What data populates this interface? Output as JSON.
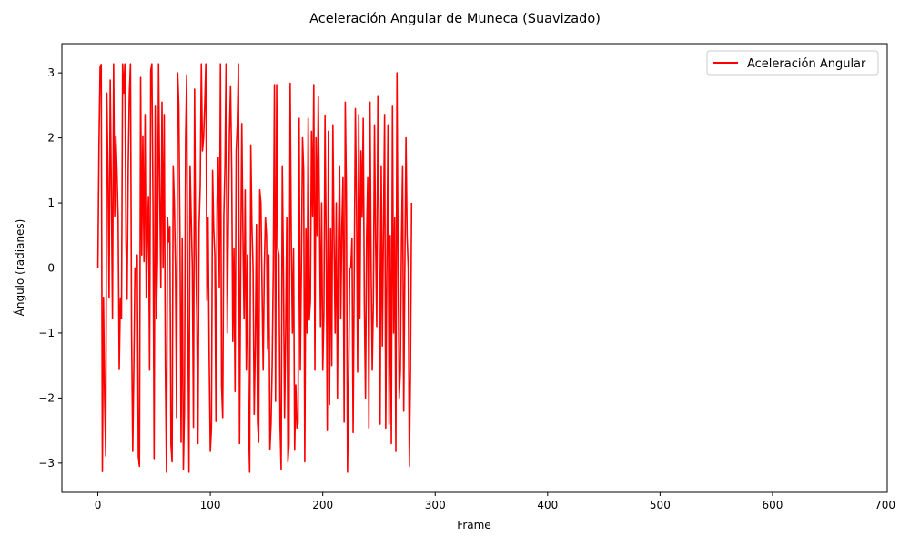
{
  "chart_data": {
    "type": "line",
    "title": "Aceleración Angular de Muneca (Suavizado)",
    "xlabel": "Frame",
    "ylabel": "Ángulo (radianes)",
    "xlim": [
      -32,
      702
    ],
    "ylim": [
      -3.45,
      3.45
    ],
    "x_ticks": [
      0,
      100,
      200,
      300,
      400,
      500,
      600,
      700
    ],
    "y_ticks": [
      -3,
      -2,
      -1,
      0,
      1,
      2,
      3
    ],
    "y_tick_labels": [
      "−3",
      "−2",
      "−1",
      "0",
      "1",
      "2",
      "3"
    ],
    "grid": false,
    "legend_position": "top-right",
    "colors": {
      "series": "#ff0000"
    },
    "series": [
      {
        "name": "Aceleración Angular",
        "x_start": 0,
        "x_step": 1,
        "values": [
          0.0,
          1.89,
          3.1,
          3.13,
          -3.13,
          -0.45,
          -2.0,
          -2.89,
          2.69,
          1.4,
          -0.46,
          2.89,
          1.2,
          -0.78,
          3.14,
          0.8,
          2.03,
          1.5,
          0.8,
          -1.56,
          -0.46,
          -0.78,
          3.14,
          2.69,
          3.14,
          0.4,
          -0.48,
          1.57,
          2.69,
          3.14,
          -1.0,
          -2.82,
          -1.5,
          0.0,
          0.0,
          0.2,
          -2.9,
          -3.05,
          2.93,
          0.2,
          2.03,
          0.1,
          2.36,
          -0.46,
          0.46,
          1.1,
          -1.57,
          3.04,
          3.14,
          1.0,
          -2.93,
          2.5,
          -0.78,
          0.1,
          3.14,
          1.2,
          -0.3,
          2.55,
          0.0,
          2.36,
          -1.5,
          -3.14,
          0.78,
          0.4,
          0.64,
          -2.72,
          -2.98,
          1.57,
          1.0,
          0.0,
          -2.3,
          3.0,
          2.5,
          0.5,
          -2.68,
          0.46,
          -3.1,
          -2.2,
          2.0,
          2.97,
          -0.78,
          -3.14,
          1.57,
          0.78,
          0.0,
          -2.45,
          2.75,
          0.3,
          -0.78,
          -2.7,
          0.64,
          1.25,
          3.14,
          1.8,
          2.0,
          2.5,
          3.14,
          -0.5,
          0.78,
          -1.4,
          -2.82,
          -2.46,
          1.5,
          0.6,
          0.2,
          -2.36,
          1.0,
          1.7,
          -0.3,
          3.14,
          -1.8,
          -2.3,
          0.8,
          1.57,
          3.14,
          -1.0,
          0.6,
          2.1,
          2.8,
          1.5,
          -1.13,
          0.3,
          -1.9,
          1.8,
          2.2,
          3.14,
          -2.7,
          0.0,
          2.22,
          0.5,
          -0.78,
          1.2,
          -1.57,
          0.2,
          -2.38,
          -3.14,
          1.89,
          0.64,
          0.0,
          -2.25,
          -1.2,
          0.67,
          -2.36,
          -2.68,
          1.2,
          1.0,
          -0.3,
          -1.57,
          0.0,
          0.78,
          0.5,
          -1.25,
          0.2,
          -2.79,
          -2.4,
          -1.5,
          0.0,
          2.82,
          -2.05,
          2.82,
          0.3,
          0.2,
          -2.4,
          -3.1,
          1.57,
          0.0,
          -2.3,
          -1.0,
          0.78,
          -2.98,
          -2.71,
          2.84,
          0.46,
          -1.0,
          0.3,
          -2.8,
          -1.8,
          -2.46,
          -2.4,
          2.3,
          -1.57,
          0.0,
          2.0,
          1.5,
          -2.98,
          0.6,
          -1.0,
          2.3,
          -0.8,
          -0.5,
          2.1,
          0.8,
          2.82,
          -1.57,
          2.0,
          0.5,
          2.64,
          1.0,
          -0.9,
          1.0,
          -1.57,
          -0.7,
          2.35,
          0.4,
          -2.5,
          2.1,
          -2.1,
          0.6,
          -1.5,
          2.2,
          0.46,
          -1.0,
          1.0,
          -2.0,
          0.5,
          1.57,
          -0.78,
          0.64,
          1.4,
          -2.37,
          2.55,
          1.2,
          -3.14,
          -1.8,
          0.0,
          0.0,
          0.46,
          -2.53,
          0.0,
          2.45,
          1.0,
          -1.6,
          2.36,
          -0.78,
          1.8,
          0.78,
          2.3,
          -0.6,
          -2.0,
          0.5,
          1.4,
          -2.46,
          2.55,
          0.0,
          -1.57,
          -0.5,
          2.2,
          0.4,
          -0.9,
          2.65,
          0.8,
          -2.4,
          1.57,
          -1.2,
          0.64,
          2.36,
          -2.46,
          0.0,
          2.2,
          -2.4,
          0.5,
          -2.7,
          2.5,
          -1.0,
          0.78,
          -2.82,
          3.0,
          0.0,
          -2.0,
          -1.57,
          0.4,
          1.57,
          -2.2,
          0.0,
          2.0,
          0.5,
          0.0,
          -3.05,
          -1.57,
          1.0
        ]
      }
    ]
  }
}
